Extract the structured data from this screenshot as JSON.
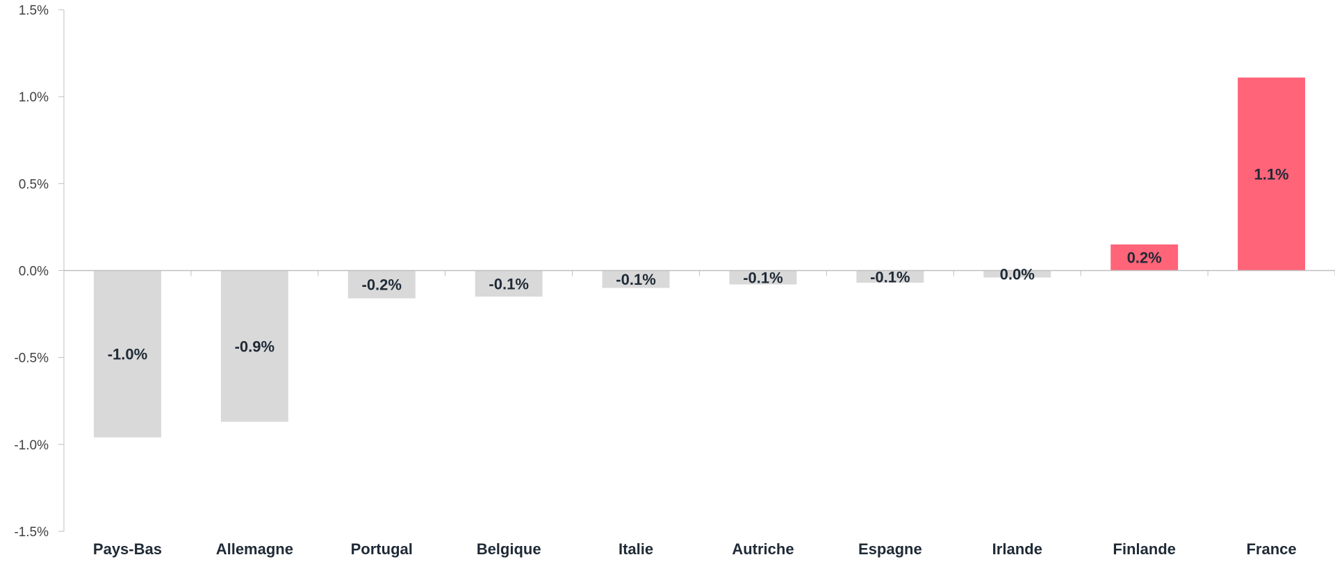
{
  "chart_data": {
    "type": "bar",
    "title": "",
    "xlabel": "",
    "ylabel": "",
    "ylim": [
      -1.5,
      1.5
    ],
    "yticks": [
      1.5,
      1.0,
      0.5,
      0.0,
      -0.5,
      -1.0,
      -1.5
    ],
    "ytick_labels": [
      "1.5%",
      "1.0%",
      "0.5%",
      "0.0%",
      "-0.5%",
      "-1.0%",
      "-1.5%"
    ],
    "categories": [
      "Pays-Bas",
      "Allemagne",
      "Portugal",
      "Belgique",
      "Italie",
      "Autriche",
      "Espagne",
      "Irlande",
      "Finlande",
      "France"
    ],
    "values": [
      -0.96,
      -0.87,
      -0.16,
      -0.15,
      -0.1,
      -0.08,
      -0.07,
      -0.04,
      0.15,
      1.11
    ],
    "data_labels": [
      "-1.0%",
      "-0.9%",
      "-0.2%",
      "-0.1%",
      "-0.1%",
      "-0.1%",
      "-0.1%",
      "0.0%",
      "0.2%",
      "1.1%"
    ],
    "colors": {
      "negative": "#d9d9d9",
      "positive": "#ff6479",
      "axis": "#bfbfbf"
    },
    "grid": false,
    "legend": "none"
  }
}
